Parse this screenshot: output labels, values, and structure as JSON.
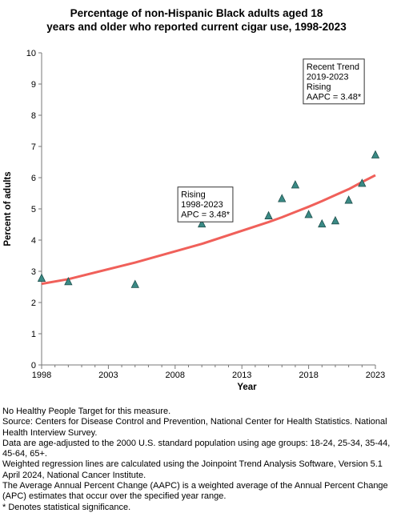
{
  "chart_data": {
    "type": "scatter",
    "title_lines": [
      "Percentage of non-Hispanic Black adults aged 18",
      "years and older who reported current cigar use, 1998-2023"
    ],
    "xlabel": "Year",
    "ylabel": "Percent of adults",
    "xlim": [
      1998,
      2023
    ],
    "ylim": [
      0,
      10
    ],
    "x_ticks": [
      1998,
      2003,
      2008,
      2013,
      2018,
      2023
    ],
    "y_ticks": [
      0,
      1,
      2,
      3,
      4,
      5,
      6,
      7,
      8,
      9,
      10
    ],
    "grid": false,
    "marker_color": "#3a8a85",
    "line_color": "#f0605a",
    "series": [
      {
        "values_x": [
          1998,
          2000,
          2005,
          2010,
          2015,
          2016,
          2017,
          2018,
          2019,
          2020,
          2021,
          2022,
          2023
        ],
        "values_y": [
          2.78,
          2.67,
          2.58,
          4.52,
          4.78,
          5.33,
          5.77,
          4.82,
          4.52,
          4.62,
          5.28,
          5.82,
          6.73
        ]
      }
    ],
    "trend_line": {
      "x": [
        1998,
        2000,
        2005,
        2010,
        2015,
        2016,
        2017,
        2018,
        2019,
        2020,
        2021,
        2022,
        2023
      ],
      "y": [
        2.6,
        2.75,
        3.28,
        3.88,
        4.58,
        4.73,
        4.9,
        5.07,
        5.25,
        5.44,
        5.63,
        5.86,
        6.08
      ]
    },
    "annotations": [
      {
        "lines": [
          "Rising",
          "1998-2023",
          "APC =  3.48*"
        ],
        "anchor_x": 2008.2,
        "anchor_y": 5.7
      },
      {
        "lines": [
          "Recent Trend",
          "2019-2023",
          "Rising",
          "AAPC =  3.48*"
        ],
        "anchor_x": 2017.6,
        "anchor_y": 9.8
      }
    ]
  },
  "footnotes": [
    "No Healthy People Target for this measure.",
    "Source: Centers for Disease Control and Prevention, National Center for Health Statistics. National Health Interview Survey.",
    "Data are age-adjusted to the 2000 U.S. standard population using age groups: 18-24, 25-34, 35-44, 45-64, 65+.",
    "Weighted regression lines are calculated using the Joinpoint Trend Analysis Software, Version 5.1 April 2024, National Cancer Institute.",
    "The Average Annual Percent Change (AAPC) is a weighted average of the Annual Percent Change (APC) estimates that occur over the specified year range.",
    "* Denotes statistical significance."
  ]
}
